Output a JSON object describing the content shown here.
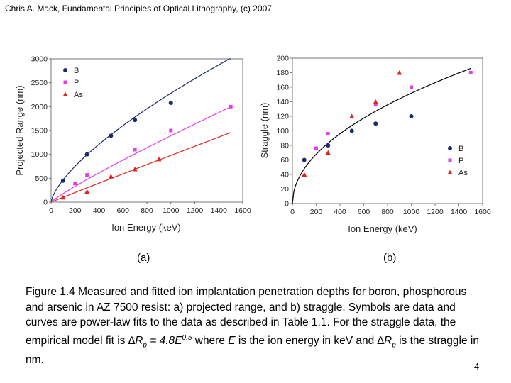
{
  "header": {
    "text": "Chris A. Mack, Fundamental Principles of Optical Lithography, (c) 2007"
  },
  "panels": [
    {
      "label": "(a)"
    },
    {
      "label": "(b)"
    }
  ],
  "caption": {
    "line1": "Figure 1.4  Measured and fitted ion implantation penetration depths for boron, phosphorous and arsenic in AZ 7500 resist:  a) projected range, and b) straggle. Symbols are data and curves are power-law fits to the data as described in Table 1.1.  For the straggle data, the empirical model fit is ",
    "delta1": "∆",
    "r1": "R",
    "sub1": "p",
    "eq": " = 4.8",
    "e1": "E",
    "exp": "0.5",
    "mid": " where ",
    "e2": "E",
    "mid2": " is the ion energy in keV and ",
    "delta2": "∆",
    "r2": "R",
    "sub2": "p",
    "end": " is the straggle in nm."
  },
  "page_number": "4",
  "colors": {
    "B": "#1a2a6e",
    "P": "#e23ee8",
    "As": "#e0241c"
  },
  "chart_data": [
    {
      "type": "scatter",
      "title": "(a)",
      "xlabel": "Ion Energy (keV)",
      "ylabel": "Projected Range (nm)",
      "xlim": [
        0,
        1600
      ],
      "ylim": [
        0,
        3000
      ],
      "xticks": [
        0,
        200,
        400,
        600,
        800,
        1000,
        1200,
        1400,
        1600
      ],
      "yticks": [
        0,
        500,
        1000,
        1500,
        2000,
        2500,
        3000
      ],
      "legend_position": "top-left",
      "series": [
        {
          "name": "B",
          "marker": "circle",
          "color": "#1a2a6e",
          "x": [
            100,
            300,
            500,
            700,
            1000
          ],
          "y": [
            450,
            1000,
            1390,
            1720,
            2080
          ],
          "fit": {
            "a": 19.4,
            "b": 0.69,
            "xmax": 1500
          }
        },
        {
          "name": "P",
          "marker": "square",
          "color": "#e23ee8",
          "x": [
            200,
            300,
            700,
            1000,
            1500
          ],
          "y": [
            390,
            570,
            1100,
            1500,
            2000
          ],
          "fit": {
            "a": 2.91,
            "b": 0.893,
            "xmax": 1500
          }
        },
        {
          "name": "As",
          "marker": "triangle",
          "color": "#e0241c",
          "x": [
            100,
            300,
            500,
            700,
            900
          ],
          "y": [
            100,
            220,
            540,
            690,
            900
          ],
          "fit": {
            "a": 1.1,
            "b": 0.983,
            "xmax": 1500
          }
        }
      ]
    },
    {
      "type": "scatter",
      "title": "(b)",
      "xlabel": "Ion Energy (keV)",
      "ylabel": "Straggle (nm)",
      "xlim": [
        0,
        1600
      ],
      "ylim": [
        0,
        200
      ],
      "xticks": [
        0,
        200,
        400,
        600,
        800,
        1000,
        1200,
        1400,
        1600
      ],
      "yticks": [
        0,
        20,
        40,
        60,
        80,
        100,
        120,
        140,
        160,
        180,
        200
      ],
      "legend_position": "bottom-right",
      "series": [
        {
          "name": "B",
          "marker": "circle",
          "color": "#1a2a6e",
          "x": [
            100,
            300,
            500,
            700,
            1000
          ],
          "y": [
            60,
            80,
            100,
            110,
            120
          ]
        },
        {
          "name": "P",
          "marker": "square",
          "color": "#e23ee8",
          "x": [
            200,
            300,
            700,
            1000,
            1500
          ],
          "y": [
            76,
            96,
            136,
            160,
            180
          ]
        },
        {
          "name": "As",
          "marker": "triangle",
          "color": "#e0241c",
          "x": [
            100,
            300,
            500,
            700,
            900
          ],
          "y": [
            40,
            70,
            120,
            140,
            180
          ]
        }
      ],
      "fit": {
        "a": 4.8,
        "b": 0.5,
        "xmax": 1500
      }
    }
  ]
}
